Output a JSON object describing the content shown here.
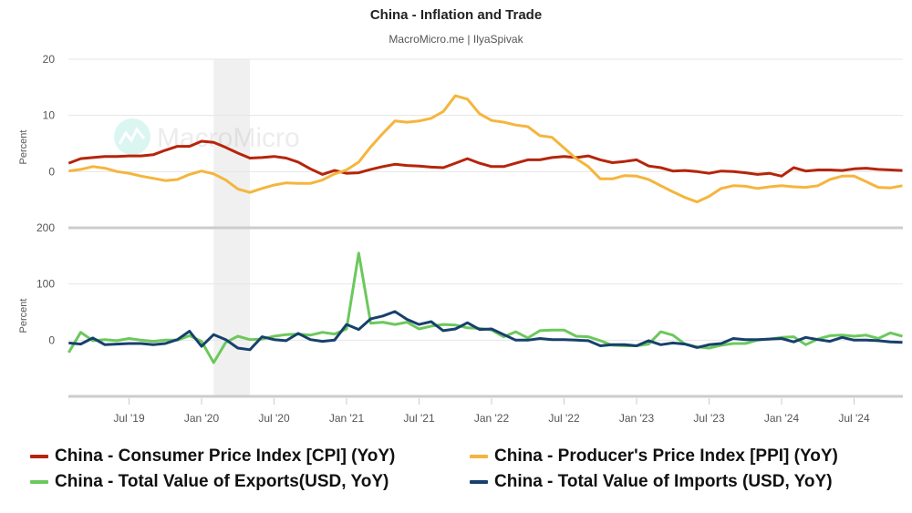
{
  "chart_data": {
    "type": "line",
    "title": "China - Inflation and Trade",
    "subtitle": "MacroMicro.me | IlyaSpivak",
    "watermark": "MacroMicro",
    "x": [
      "2019-02",
      "2019-03",
      "2019-04",
      "2019-05",
      "2019-06",
      "2019-07",
      "2019-08",
      "2019-09",
      "2019-10",
      "2019-11",
      "2019-12",
      "2020-01",
      "2020-02",
      "2020-03",
      "2020-04",
      "2020-05",
      "2020-06",
      "2020-07",
      "2020-08",
      "2020-09",
      "2020-10",
      "2020-11",
      "2020-12",
      "2021-01",
      "2021-02",
      "2021-03",
      "2021-04",
      "2021-05",
      "2021-06",
      "2021-07",
      "2021-08",
      "2021-09",
      "2021-10",
      "2021-11",
      "2021-12",
      "2022-01",
      "2022-02",
      "2022-03",
      "2022-04",
      "2022-05",
      "2022-06",
      "2022-07",
      "2022-08",
      "2022-09",
      "2022-10",
      "2022-11",
      "2022-12",
      "2023-01",
      "2023-02",
      "2023-03",
      "2023-04",
      "2023-05",
      "2023-06",
      "2023-07",
      "2023-08",
      "2023-09",
      "2023-10",
      "2023-11",
      "2023-12",
      "2024-01",
      "2024-02",
      "2024-03",
      "2024-04",
      "2024-05",
      "2024-06",
      "2024-07",
      "2024-08",
      "2024-09",
      "2024-10",
      "2024-11"
    ],
    "xticks": [
      {
        "date": "2019-07",
        "label": "Jul '19"
      },
      {
        "date": "2020-01",
        "label": "Jan '20"
      },
      {
        "date": "2020-07",
        "label": "Jul '20"
      },
      {
        "date": "2021-01",
        "label": "Jan '21"
      },
      {
        "date": "2021-07",
        "label": "Jul '21"
      },
      {
        "date": "2022-01",
        "label": "Jan '22"
      },
      {
        "date": "2022-07",
        "label": "Jul '22"
      },
      {
        "date": "2023-01",
        "label": "Jan '23"
      },
      {
        "date": "2023-07",
        "label": "Jul '23"
      },
      {
        "date": "2024-01",
        "label": "Jan '24"
      },
      {
        "date": "2024-07",
        "label": "Jul '24"
      }
    ],
    "shaded_period": {
      "from": "2020-02",
      "to": "2020-04",
      "color": "#f0f0f0"
    },
    "legend_placement": "bottom",
    "grid": true,
    "panels": [
      {
        "ylabel": "Percent",
        "ylim": [
          -10,
          20
        ],
        "yticks": [
          0,
          10,
          20
        ],
        "series": [
          {
            "name": "China - Consumer Price Index [CPI] (YoY)",
            "color": "#b5250b",
            "values": [
              1.5,
              2.3,
              2.5,
              2.7,
              2.7,
              2.8,
              2.8,
              3.0,
              3.8,
              4.5,
              4.5,
              5.4,
              5.2,
              4.3,
              3.3,
              2.4,
              2.5,
              2.7,
              2.4,
              1.7,
              0.5,
              -0.5,
              0.2,
              -0.3,
              -0.2,
              0.4,
              0.9,
              1.3,
              1.1,
              1.0,
              0.8,
              0.7,
              1.5,
              2.3,
              1.5,
              0.9,
              0.9,
              1.5,
              2.1,
              2.1,
              2.5,
              2.7,
              2.5,
              2.8,
              2.1,
              1.6,
              1.8,
              2.1,
              1.0,
              0.7,
              0.1,
              0.2,
              0.0,
              -0.3,
              0.1,
              0.0,
              -0.2,
              -0.5,
              -0.3,
              -0.8,
              0.7,
              0.1,
              0.3,
              0.3,
              0.2,
              0.5,
              0.6,
              0.4,
              0.3,
              0.2
            ]
          },
          {
            "name": "China - Producer's Price Index [PPI] (YoY)",
            "color": "#f5b53d",
            "values": [
              0.1,
              0.4,
              0.9,
              0.6,
              0.0,
              -0.3,
              -0.8,
              -1.2,
              -1.6,
              -1.4,
              -0.5,
              0.1,
              -0.4,
              -1.5,
              -3.1,
              -3.7,
              -3.0,
              -2.4,
              -2.0,
              -2.1,
              -2.1,
              -1.5,
              -0.4,
              0.3,
              1.7,
              4.4,
              6.8,
              9.0,
              8.8,
              9.0,
              9.5,
              10.7,
              13.5,
              12.9,
              10.3,
              9.1,
              8.8,
              8.3,
              8.0,
              6.4,
              6.1,
              4.2,
              2.3,
              0.9,
              -1.3,
              -1.3,
              -0.7,
              -0.8,
              -1.4,
              -2.5,
              -3.6,
              -4.6,
              -5.4,
              -4.4,
              -3.0,
              -2.5,
              -2.6,
              -3.0,
              -2.7,
              -2.5,
              -2.7,
              -2.8,
              -2.5,
              -1.4,
              -0.8,
              -0.8,
              -1.8,
              -2.8,
              -2.9,
              -2.5
            ]
          }
        ]
      },
      {
        "ylabel": "Percent",
        "ylim": [
          -100,
          200
        ],
        "yticks": [
          0,
          100,
          200
        ],
        "series": [
          {
            "name": "China - Total Value of Exports(USD, YoY)",
            "color": "#6cc85c",
            "values": [
              -22,
              14,
              -1,
              1,
              -1,
              3,
              0,
              -2,
              0,
              0,
              8,
              -2,
              -40,
              -4,
              7,
              1,
              2,
              7,
              10,
              11,
              9,
              14,
              11,
              20,
              155,
              30,
              32,
              28,
              32,
              20,
              25,
              28,
              27,
              22,
              21,
              18,
              6,
              15,
              4,
              17,
              18,
              18,
              7,
              6,
              -1,
              -9,
              -10,
              -10,
              -7,
              15,
              9,
              -7,
              -12,
              -14,
              -9,
              -6,
              -6,
              0,
              2,
              5,
              6,
              -8,
              2,
              8,
              9,
              7,
              9,
              3,
              13,
              7
            ]
          },
          {
            "name": "China - Total Value of Imports (USD, YoY)",
            "color": "#17406d",
            "values": [
              -5,
              -7,
              4,
              -8,
              -7,
              -6,
              -6,
              -8,
              -6,
              1,
              16,
              -11,
              10,
              1,
              -14,
              -17,
              6,
              1,
              -1,
              12,
              1,
              -2,
              0,
              28,
              19,
              38,
              43,
              51,
              37,
              28,
              33,
              17,
              20,
              31,
              19,
              20,
              10,
              0,
              0,
              3,
              1,
              1,
              0,
              -1,
              -10,
              -8,
              -8,
              -10,
              -1,
              -8,
              -5,
              -7,
              -13,
              -8,
              -6,
              3,
              1,
              1,
              2,
              3,
              -3,
              5,
              1,
              -2,
              5,
              0,
              0,
              -1,
              -3,
              -4
            ]
          }
        ]
      }
    ]
  }
}
